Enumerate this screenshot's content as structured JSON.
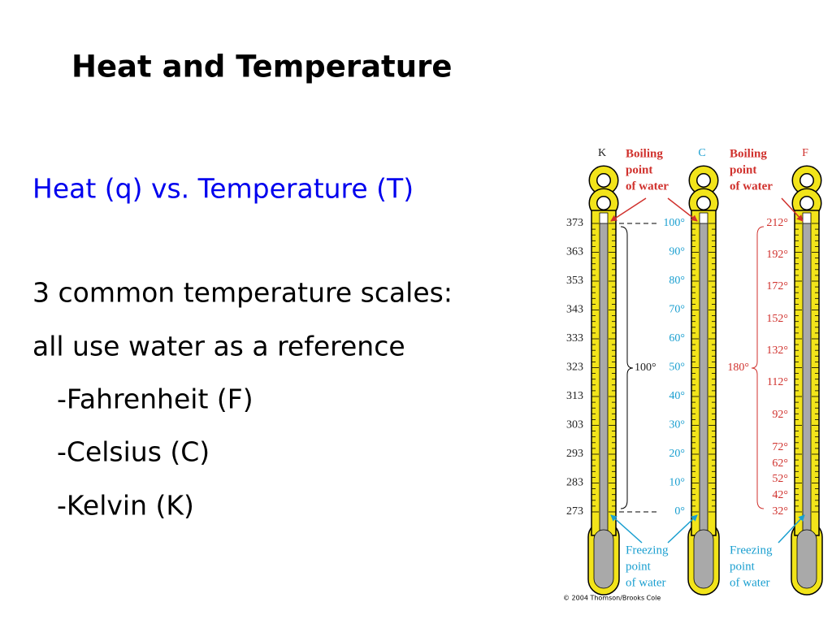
{
  "title": "Heat and Temperature",
  "subtitle": "Heat (q) vs. Temperature (T)",
  "body": [
    "3 common temperature scales:",
    "all use water as a reference",
    "-Fahrenheit (F)",
    "-Celsius (C)",
    "-Kelvin (K)"
  ],
  "figure": {
    "scales": [
      {
        "letter": "K",
        "ticks": [
          "373",
          "363",
          "353",
          "343",
          "333",
          "323",
          "313",
          "303",
          "293",
          "283",
          "273"
        ]
      },
      {
        "letter": "C",
        "ticks": [
          "100°",
          "90°",
          "80°",
          "70°",
          "60°",
          "50°",
          "40°",
          "30°",
          "20°",
          "10°",
          "0°"
        ]
      },
      {
        "letter": "F",
        "ticks": [
          "212°",
          "192°",
          "172°",
          "152°",
          "132°",
          "112°",
          "92°",
          "72°",
          "62°",
          "52°",
          "42°",
          "32°"
        ]
      }
    ],
    "boiling_labels": [
      [
        "Boiling",
        "point",
        "of water"
      ],
      [
        "Boiling",
        "point",
        "of water"
      ]
    ],
    "freezing_labels": [
      [
        "Freezing",
        "point",
        "of water"
      ],
      [
        "Freezing",
        "point",
        "of water"
      ]
    ],
    "spans": [
      "100°",
      "180°"
    ],
    "credit": "© 2004 Thomson/Brooks Cole"
  }
}
